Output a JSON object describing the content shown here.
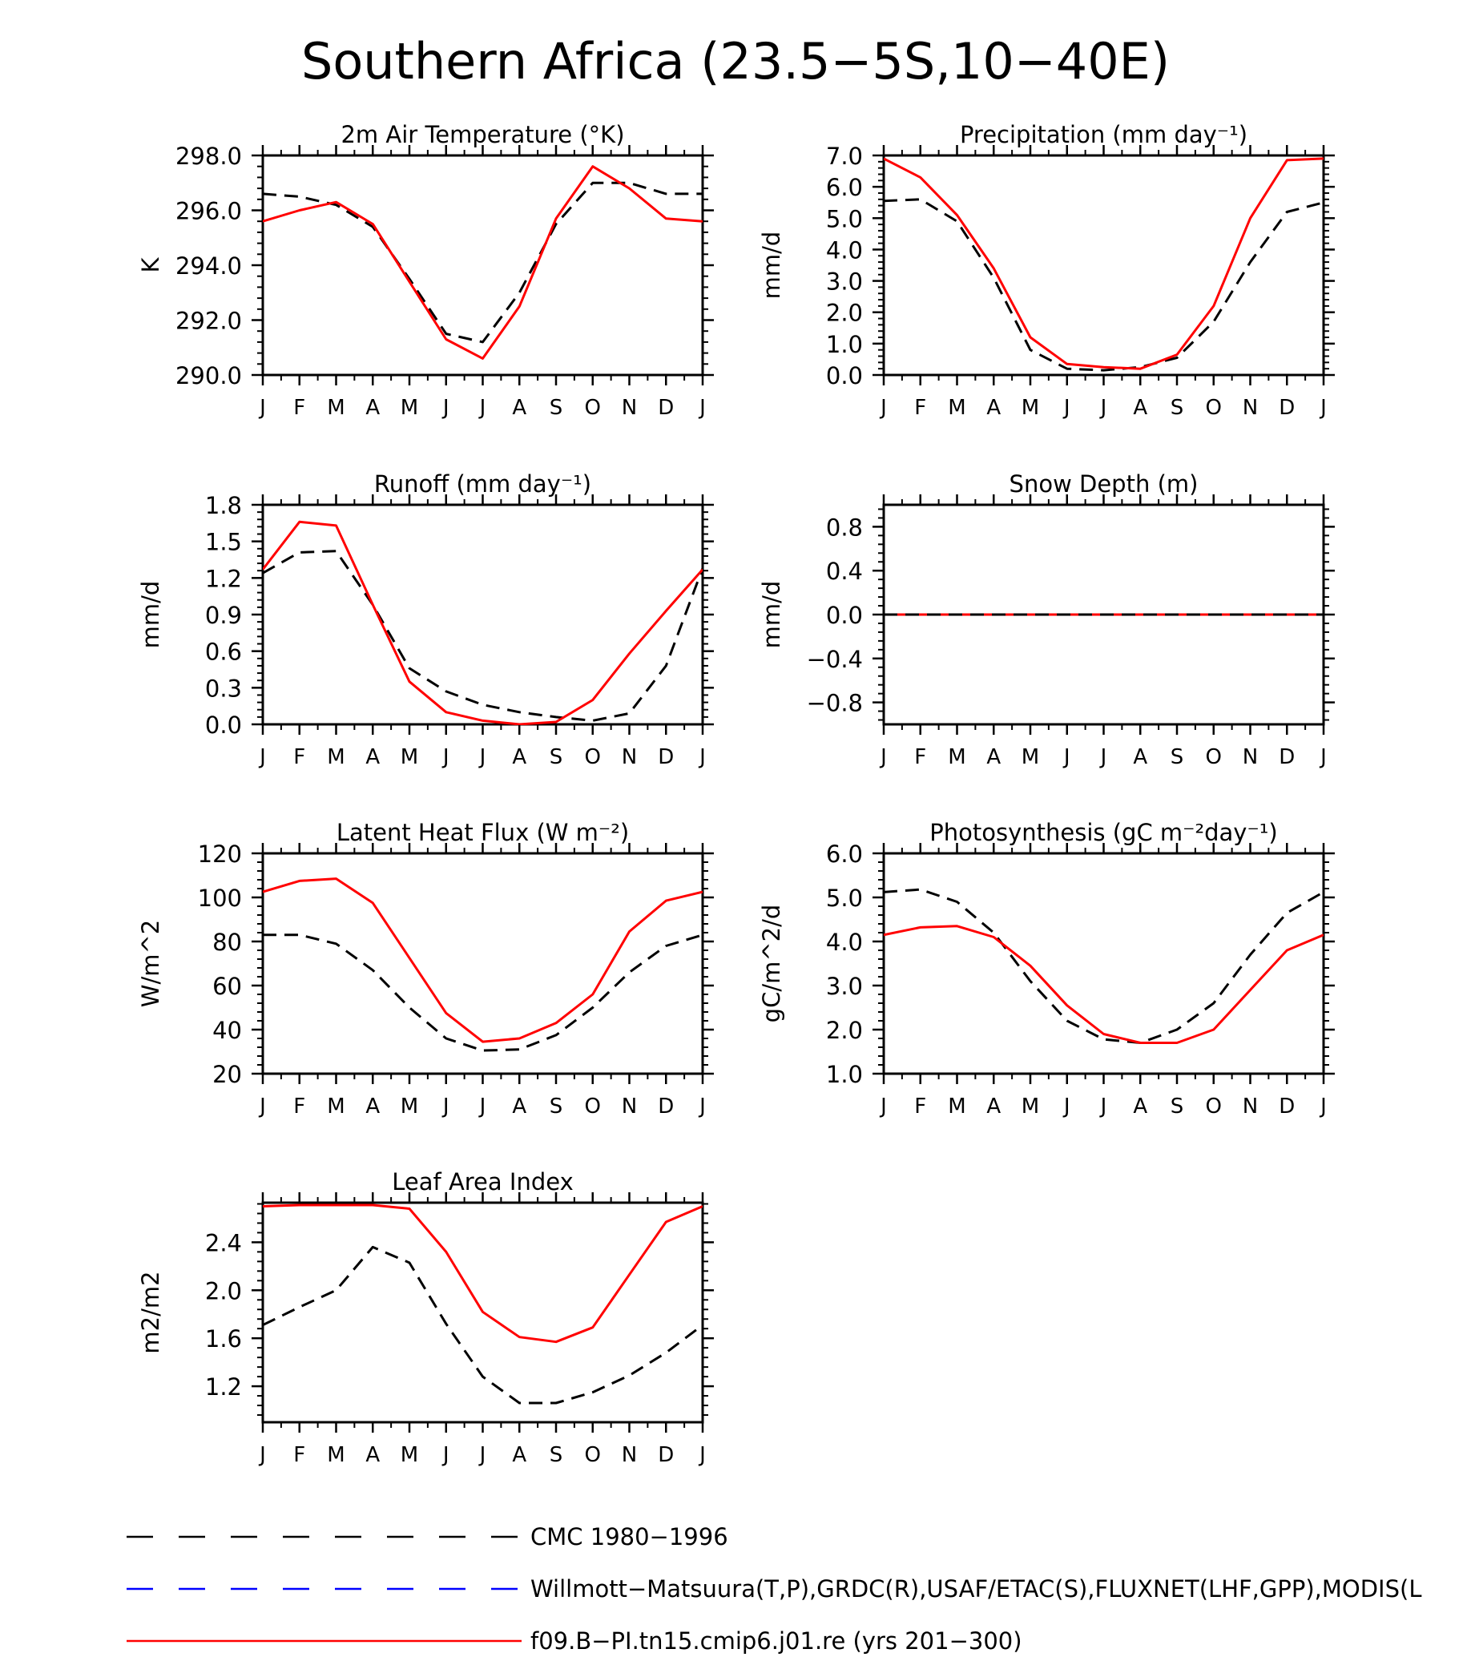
{
  "figure": {
    "title": "Southern Africa (23.5−5S,10−40E)"
  },
  "colors": {
    "obs": "#000000",
    "model": "#ff0000",
    "obs2": "#0000ff"
  },
  "legend": [
    {
      "label": "CMC 1980−1996",
      "color": "#000000",
      "style": "dashed"
    },
    {
      "label": "Willmott−Matsuura(T,P),GRDC(R),USAF/ETAC(S),FLUXNET(LHF,GPP),MODIS(L",
      "color": "#0000ff",
      "style": "dashed"
    },
    {
      "label": "f09.B−PI.tn15.cmip6.j01.re (yrs 201−300)",
      "color": "#ff0000",
      "style": "solid"
    }
  ],
  "chart_data": [
    {
      "type": "line",
      "title": "2m Air Temperature (°K)",
      "ylabel": "K",
      "xticks": [
        "J",
        "F",
        "M",
        "A",
        "M",
        "J",
        "J",
        "A",
        "S",
        "O",
        "N",
        "D",
        "J"
      ],
      "ylim": [
        290,
        298
      ],
      "yticks": [
        {
          "v": 290,
          "t": "290.0"
        },
        {
          "v": 292,
          "t": "292.0"
        },
        {
          "v": 294,
          "t": "294.0"
        },
        {
          "v": 296,
          "t": "296.0"
        },
        {
          "v": 298,
          "t": "298.0"
        }
      ],
      "series": [
        {
          "style": "dashed",
          "color": "#000000",
          "values": [
            296.6,
            296.5,
            296.2,
            295.4,
            293.5,
            291.5,
            291.2,
            293.0,
            295.5,
            297.0,
            297.0,
            296.6,
            296.6
          ]
        },
        {
          "style": "solid",
          "color": "#ff0000",
          "values": [
            295.6,
            296.0,
            296.3,
            295.5,
            293.4,
            291.3,
            290.6,
            292.5,
            295.7,
            297.6,
            296.8,
            295.7,
            295.6
          ]
        }
      ]
    },
    {
      "type": "line",
      "title": "Precipitation (mm day⁻¹)",
      "ylabel": "mm/d",
      "xticks": [
        "J",
        "F",
        "M",
        "A",
        "M",
        "J",
        "J",
        "A",
        "S",
        "O",
        "N",
        "D",
        "J"
      ],
      "ylim": [
        0,
        7
      ],
      "yticks": [
        {
          "v": 0,
          "t": "0.0"
        },
        {
          "v": 1,
          "t": "1.0"
        },
        {
          "v": 2,
          "t": "2.0"
        },
        {
          "v": 3,
          "t": "3.0"
        },
        {
          "v": 4,
          "t": "4.0"
        },
        {
          "v": 5,
          "t": "5.0"
        },
        {
          "v": 6,
          "t": "6.0"
        },
        {
          "v": 7,
          "t": "7.0"
        }
      ],
      "series": [
        {
          "style": "dashed",
          "color": "#000000",
          "values": [
            5.55,
            5.6,
            4.9,
            3.1,
            0.8,
            0.2,
            0.15,
            0.25,
            0.55,
            1.7,
            3.6,
            5.2,
            5.5
          ]
        },
        {
          "style": "solid",
          "color": "#ff0000",
          "values": [
            6.9,
            6.3,
            5.1,
            3.4,
            1.2,
            0.35,
            0.25,
            0.2,
            0.65,
            2.2,
            5.0,
            6.85,
            6.9
          ]
        }
      ]
    },
    {
      "type": "line",
      "title": "Runoff (mm day⁻¹)",
      "ylabel": "mm/d",
      "xticks": [
        "J",
        "F",
        "M",
        "A",
        "M",
        "J",
        "J",
        "A",
        "S",
        "O",
        "N",
        "D",
        "J"
      ],
      "ylim": [
        0,
        1.8
      ],
      "yticks": [
        {
          "v": 0,
          "t": "0.0"
        },
        {
          "v": 0.3,
          "t": "0.3"
        },
        {
          "v": 0.6,
          "t": "0.6"
        },
        {
          "v": 0.9,
          "t": "0.9"
        },
        {
          "v": 1.2,
          "t": "1.2"
        },
        {
          "v": 1.5,
          "t": "1.5"
        },
        {
          "v": 1.8,
          "t": "1.8"
        }
      ],
      "series": [
        {
          "style": "dashed",
          "color": "#000000",
          "values": [
            1.24,
            1.41,
            1.42,
            0.98,
            0.46,
            0.27,
            0.16,
            0.1,
            0.06,
            0.03,
            0.09,
            0.48,
            1.28
          ]
        },
        {
          "style": "solid",
          "color": "#ff0000",
          "values": [
            1.27,
            1.66,
            1.63,
            0.98,
            0.35,
            0.1,
            0.03,
            0.0,
            0.02,
            0.2,
            0.58,
            0.93,
            1.27
          ]
        }
      ]
    },
    {
      "type": "line",
      "title": "Snow Depth (m)",
      "ylabel": "mm/d",
      "xticks": [
        "J",
        "F",
        "M",
        "A",
        "M",
        "J",
        "J",
        "A",
        "S",
        "O",
        "N",
        "D",
        "J"
      ],
      "ylim": [
        -1.0,
        1.0
      ],
      "yticks": [
        {
          "v": -0.8,
          "t": "−0.8"
        },
        {
          "v": -0.4,
          "t": "−0.4"
        },
        {
          "v": 0,
          "t": "0.0"
        },
        {
          "v": 0.4,
          "t": "0.4"
        },
        {
          "v": 0.8,
          "t": "0.8"
        }
      ],
      "series": [
        {
          "style": "solid",
          "color": "#ff0000",
          "values": [
            0,
            0,
            0,
            0,
            0,
            0,
            0,
            0,
            0,
            0,
            0,
            0,
            0
          ]
        },
        {
          "style": "dashed",
          "color": "#000000",
          "values": [
            0,
            0,
            0,
            0,
            0,
            0,
            0,
            0,
            0,
            0,
            0,
            0,
            0
          ]
        }
      ]
    },
    {
      "type": "line",
      "title": "Latent Heat Flux (W m⁻²)",
      "ylabel": "W/m^2",
      "xticks": [
        "J",
        "F",
        "M",
        "A",
        "M",
        "J",
        "J",
        "A",
        "S",
        "O",
        "N",
        "D",
        "J"
      ],
      "ylim": [
        20,
        120
      ],
      "yticks": [
        {
          "v": 20,
          "t": "20"
        },
        {
          "v": 40,
          "t": "40"
        },
        {
          "v": 60,
          "t": "60"
        },
        {
          "v": 80,
          "t": "80"
        },
        {
          "v": 100,
          "t": "100"
        },
        {
          "v": 120,
          "t": "120"
        }
      ],
      "series": [
        {
          "style": "dashed",
          "color": "#000000",
          "values": [
            83,
            83,
            79,
            67,
            50,
            36,
            30.5,
            31,
            37.5,
            50,
            66,
            78,
            83
          ]
        },
        {
          "style": "solid",
          "color": "#ff0000",
          "values": [
            102.5,
            107.5,
            108.5,
            97.5,
            72.5,
            47.5,
            34.5,
            36,
            43,
            56,
            84.5,
            98.5,
            102.5
          ]
        }
      ]
    },
    {
      "type": "line",
      "title": "Photosynthesis (gC m⁻²day⁻¹)",
      "ylabel": "gC/m^2/d",
      "xticks": [
        "J",
        "F",
        "M",
        "A",
        "M",
        "J",
        "J",
        "A",
        "S",
        "O",
        "N",
        "D",
        "J"
      ],
      "ylim": [
        1,
        6
      ],
      "yticks": [
        {
          "v": 1,
          "t": "1.0"
        },
        {
          "v": 2,
          "t": "2.0"
        },
        {
          "v": 3,
          "t": "3.0"
        },
        {
          "v": 4,
          "t": "4.0"
        },
        {
          "v": 5,
          "t": "5.0"
        },
        {
          "v": 6,
          "t": "6.0"
        }
      ],
      "series": [
        {
          "style": "dashed",
          "color": "#000000",
          "values": [
            5.12,
            5.18,
            4.9,
            4.2,
            3.1,
            2.2,
            1.78,
            1.7,
            2.0,
            2.6,
            3.7,
            4.65,
            5.12
          ]
        },
        {
          "style": "solid",
          "color": "#ff0000",
          "values": [
            4.15,
            4.32,
            4.35,
            4.1,
            3.45,
            2.55,
            1.9,
            1.7,
            1.7,
            2.0,
            2.9,
            3.8,
            4.15
          ]
        }
      ]
    },
    {
      "type": "line",
      "title": "Leaf Area Index",
      "ylabel": "m2/m2",
      "xticks": [
        "J",
        "F",
        "M",
        "A",
        "M",
        "J",
        "J",
        "A",
        "S",
        "O",
        "N",
        "D",
        "J"
      ],
      "ylim": [
        0.9,
        2.73
      ],
      "yticks": [
        {
          "v": 1.2,
          "t": "1.2"
        },
        {
          "v": 1.6,
          "t": "1.6"
        },
        {
          "v": 2.0,
          "t": "2.0"
        },
        {
          "v": 2.4,
          "t": "2.4"
        }
      ],
      "series": [
        {
          "style": "dashed",
          "color": "#000000",
          "values": [
            1.71,
            1.86,
            2.0,
            2.36,
            2.23,
            1.72,
            1.28,
            1.06,
            1.06,
            1.15,
            1.29,
            1.48,
            1.71
          ]
        },
        {
          "style": "solid",
          "color": "#ff0000",
          "values": [
            2.7,
            2.71,
            2.71,
            2.71,
            2.68,
            2.32,
            1.82,
            1.61,
            1.57,
            1.69,
            2.13,
            2.57,
            2.7
          ]
        }
      ]
    }
  ]
}
